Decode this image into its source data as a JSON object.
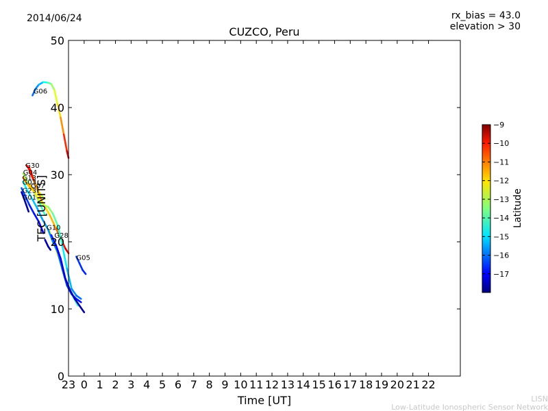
{
  "header": {
    "date": "2014/06/24",
    "params_line1": "rx_bias = 43.0",
    "params_line2": "elevation > 30"
  },
  "footer": {
    "line1": "LISN",
    "line2": "Low-Latitude Ionospheric Sensor Network"
  },
  "colorbar": {
    "label": "Latitude",
    "range": [
      -18,
      -9
    ],
    "ticks": [
      "−9",
      "−10",
      "−11",
      "−12",
      "−13",
      "−14",
      "−15",
      "−16",
      "−17"
    ],
    "tick_values": [
      -9,
      -10,
      -11,
      -12,
      -13,
      -14,
      -15,
      -16,
      -17
    ],
    "colormap": "jet"
  },
  "chart_data": {
    "type": "line",
    "title": "CUZCO, Peru",
    "xlabel": "Time [UT]",
    "ylabel": "TEC [UNITS]",
    "ylim": [
      0,
      50
    ],
    "yticks": [
      "0",
      "10",
      "20",
      "30",
      "40",
      "50"
    ],
    "xticks": [
      "23",
      "0",
      "1",
      "2",
      "3",
      "4",
      "5",
      "6",
      "7",
      "8",
      "9",
      "10",
      "11",
      "12",
      "13",
      "14",
      "15",
      "16",
      "17",
      "18",
      "19",
      "20",
      "21",
      "22"
    ],
    "xlim_hours": [
      23,
      48
    ],
    "grid": false,
    "series": [
      {
        "name": "G06",
        "label_at": [
          20.75,
          42.1
        ],
        "points": [
          [
            20.7,
            41.8,
            -16.0
          ],
          [
            20.9,
            42.8,
            -15.8
          ],
          [
            21.1,
            43.4,
            -15.5
          ],
          [
            21.4,
            43.8,
            -15.0
          ],
          [
            21.7,
            43.7,
            -14.0
          ],
          [
            21.9,
            43.5,
            -13.5
          ],
          [
            22.1,
            42.6,
            -13.0
          ],
          [
            22.3,
            40.5,
            -12.3
          ],
          [
            22.5,
            38.5,
            -11.8
          ],
          [
            22.7,
            36.0,
            -11.0
          ],
          [
            22.9,
            33.5,
            -10.0
          ],
          [
            23.0,
            32.5,
            -9.5
          ]
        ]
      },
      {
        "name": "G30",
        "label_at": [
          20.25,
          31.0
        ],
        "points": [
          [
            20.3,
            31.4,
            -9.8
          ],
          [
            20.5,
            31.0,
            -10.0
          ],
          [
            20.7,
            29.8,
            -10.8
          ],
          [
            20.9,
            28.5,
            -11.8
          ],
          [
            21.1,
            27.5,
            -12.5
          ],
          [
            21.3,
            26.8,
            -13.0
          ],
          [
            21.5,
            26.4,
            -13.3
          ]
        ]
      },
      {
        "name": "G28",
        "label_at": [
          22.1,
          20.6
        ],
        "points": [
          [
            20.4,
            31.2,
            -9.5
          ],
          [
            20.8,
            29.0,
            -11.0
          ],
          [
            21.3,
            26.0,
            -12.0
          ],
          [
            21.8,
            24.0,
            -12.0
          ],
          [
            22.2,
            22.0,
            -11.5
          ],
          [
            22.5,
            20.5,
            -10.5
          ],
          [
            22.8,
            19.0,
            -10.0
          ],
          [
            23.0,
            18.3,
            -9.5
          ]
        ]
      },
      {
        "name": "G04",
        "label_at": [
          20.1,
          30.0
        ],
        "points": [
          [
            20.1,
            30.2,
            -13.0
          ],
          [
            20.3,
            29.3,
            -13.3
          ],
          [
            20.6,
            28.2,
            -13.6
          ],
          [
            20.9,
            27.0,
            -13.8
          ],
          [
            21.2,
            25.5,
            -14.0
          ],
          [
            21.5,
            24.0,
            -14.2
          ]
        ]
      },
      {
        "name": "G10",
        "label_at": [
          21.6,
          21.8
        ],
        "points": [
          [
            21.5,
            22.5,
            -12.5
          ],
          [
            21.8,
            21.5,
            -12.0
          ],
          [
            22.1,
            19.5,
            -12.3
          ],
          [
            22.4,
            17.5,
            -12.5
          ],
          [
            22.7,
            15.0,
            -13.0
          ],
          [
            23.0,
            13.0,
            -13.5
          ],
          [
            23.3,
            11.8,
            -14.0
          ],
          [
            23.6,
            10.5,
            -14.5
          ]
        ]
      },
      {
        "name": "G07",
        "label_at": [
          20.6,
          28.0
        ],
        "points": [
          [
            20.5,
            28.6,
            -11.5
          ],
          [
            20.8,
            27.6,
            -12.0
          ],
          [
            21.1,
            26.2,
            -12.5
          ],
          [
            21.4,
            25.5,
            -13.0
          ],
          [
            21.7,
            25.2,
            -13.2
          ],
          [
            22.0,
            24.2,
            -13.6
          ],
          [
            22.3,
            22.5,
            -14.0
          ],
          [
            22.6,
            19.5,
            -14.5
          ],
          [
            22.9,
            16.0,
            -15.0
          ],
          [
            23.2,
            13.0,
            -15.5
          ],
          [
            23.5,
            12.0,
            -15.8
          ],
          [
            23.8,
            11.5,
            -16.0
          ]
        ]
      },
      {
        "name": "G05",
        "label_at": [
          23.5,
          17.3
        ],
        "points": [
          [
            23.5,
            17.8,
            -16.3
          ],
          [
            23.7,
            16.8,
            -16.4
          ],
          [
            23.9,
            15.8,
            -16.5
          ],
          [
            24.1,
            15.2,
            -16.6
          ]
        ]
      },
      {
        "name": "G03",
        "label_at": [
          20.05,
          28.5
        ],
        "points": [
          [
            20.1,
            29.0,
            -14.5
          ],
          [
            20.4,
            27.5,
            -14.8
          ],
          [
            20.7,
            26.3,
            -15.0
          ],
          [
            21.0,
            25.0,
            -15.3
          ],
          [
            21.3,
            23.5,
            -15.5
          ],
          [
            21.7,
            21.8,
            -15.5
          ],
          [
            22.0,
            20.0,
            -15.6
          ],
          [
            22.3,
            18.5,
            -15.8
          ],
          [
            22.6,
            16.0,
            -16.0
          ],
          [
            22.9,
            13.5,
            -16.3
          ],
          [
            23.2,
            12.2,
            -16.5
          ],
          [
            23.5,
            11.5,
            -16.7
          ],
          [
            23.8,
            11.0,
            -16.8
          ]
        ]
      },
      {
        "name": "G13",
        "label_at": [
          20.05,
          29.2
        ],
        "points": [
          [
            20.1,
            29.6,
            -11.0
          ],
          [
            20.3,
            28.8,
            -11.5
          ],
          [
            20.6,
            27.9,
            -12.0
          ],
          [
            20.9,
            27.3,
            -12.2
          ]
        ]
      },
      {
        "name": "G23",
        "label_at": [
          20.05,
          27.3
        ],
        "points": [
          [
            20.0,
            28.0,
            -16.0
          ],
          [
            20.2,
            27.0,
            -16.3
          ],
          [
            20.5,
            25.5,
            -16.5
          ],
          [
            20.8,
            24.2,
            -16.7
          ],
          [
            21.1,
            23.0,
            -16.8
          ],
          [
            21.4,
            21.3,
            -17.0
          ]
        ]
      },
      {
        "name": "G01",
        "label_at": [
          20.05,
          26.3
        ],
        "points": [
          [
            20.0,
            27.4,
            -17.5
          ],
          [
            20.15,
            26.5,
            -17.6
          ],
          [
            20.3,
            25.5,
            -17.7
          ],
          [
            20.45,
            24.5,
            -17.8
          ]
        ]
      },
      {
        "name": "",
        "label_at": null,
        "points": [
          [
            21.5,
            20.3,
            -17.5
          ],
          [
            21.7,
            19.3,
            -17.6
          ],
          [
            21.85,
            18.8,
            -17.7
          ]
        ]
      },
      {
        "name": "",
        "label_at": null,
        "points": [
          [
            21.9,
            21.0,
            -16.5
          ],
          [
            22.2,
            19.5,
            -16.8
          ],
          [
            22.5,
            17.5,
            -17.0
          ],
          [
            22.8,
            14.5,
            -17.2
          ],
          [
            23.1,
            12.8,
            -17.4
          ],
          [
            23.4,
            11.5,
            -17.5
          ],
          [
            23.7,
            10.5,
            -17.6
          ],
          [
            24.0,
            9.5,
            -17.8
          ]
        ]
      }
    ]
  }
}
